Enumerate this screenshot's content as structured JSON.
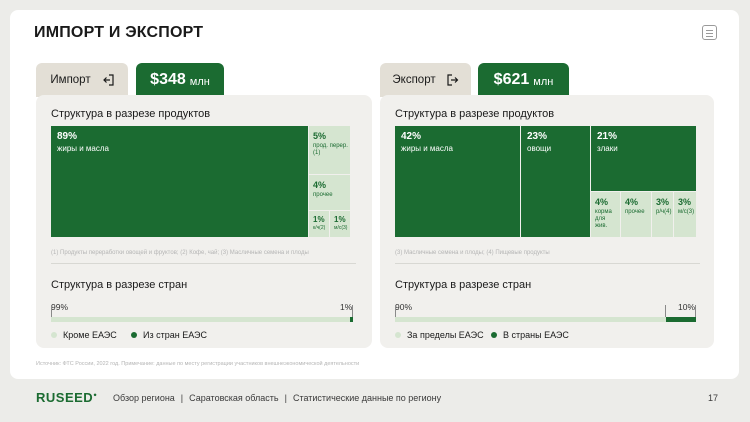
{
  "slide": {
    "title": "ИМПОРТ И ЭКСПОРТ",
    "source_note": "Источник: ФТС России, 2022 год. Примечание: данные по месту регистрации участников внешнеэкономической деятельности"
  },
  "import": {
    "tab_label": "Импорт",
    "tab_icon": "arrow-into-box-icon",
    "amount": "$348",
    "unit": "млн",
    "products_heading": "Структура в разрезе продуктов",
    "products": [
      {
        "pct": "89%",
        "label": "жиры и масла"
      },
      {
        "pct": "5%",
        "label": "прод. перер.(1)"
      },
      {
        "pct": "4%",
        "label": "прочее"
      },
      {
        "pct": "1%",
        "label": "к/ч(2)"
      },
      {
        "pct": "1%",
        "label": "м/с(3)"
      }
    ],
    "products_footnote": "(1) Продукты переработки овощей и фруктов; (2) Кофе, чай; (3) Масличные семена и плоды",
    "countries_heading": "Структура в разрезе стран",
    "countries": {
      "left_pct": "99%",
      "right_pct": "1%",
      "share_dark": 0.01,
      "legend_light": "Кроме ЕАЭС",
      "legend_dark": "Из стран ЕАЭС"
    }
  },
  "export": {
    "tab_label": "Экспорт",
    "tab_icon": "arrow-out-of-box-icon",
    "amount": "$621",
    "unit": "млн",
    "products_heading": "Структура в разрезе продуктов",
    "products": [
      {
        "pct": "42%",
        "label": "жиры и масла"
      },
      {
        "pct": "23%",
        "label": "овощи"
      },
      {
        "pct": "21%",
        "label": "злаки"
      },
      {
        "pct": "4%",
        "label": "корма для жив."
      },
      {
        "pct": "4%",
        "label": "прочее"
      },
      {
        "pct": "3%",
        "label": "р/ч(4)"
      },
      {
        "pct": "3%",
        "label": "м/с(3)"
      }
    ],
    "products_footnote": "(3) Масличные семена и плоды; (4) Пищевые продукты",
    "countries_heading": "Структура в разрезе стран",
    "countries": {
      "left_pct": "90%",
      "right_pct": "10%",
      "share_dark": 0.1,
      "legend_light": "За пределы ЕАЭС",
      "legend_dark": "В страны ЕАЭС"
    }
  },
  "footer": {
    "logo": "RUSEED",
    "crumbs": [
      "Обзор региона",
      "Саратовская область",
      "Статистические данные по региону"
    ],
    "page": "17"
  },
  "colors": {
    "accent": "#1b6b31",
    "accent_light": "#d5e5d0",
    "tab_beige": "#e3dfd6",
    "panel": "#f1f0ed"
  }
}
